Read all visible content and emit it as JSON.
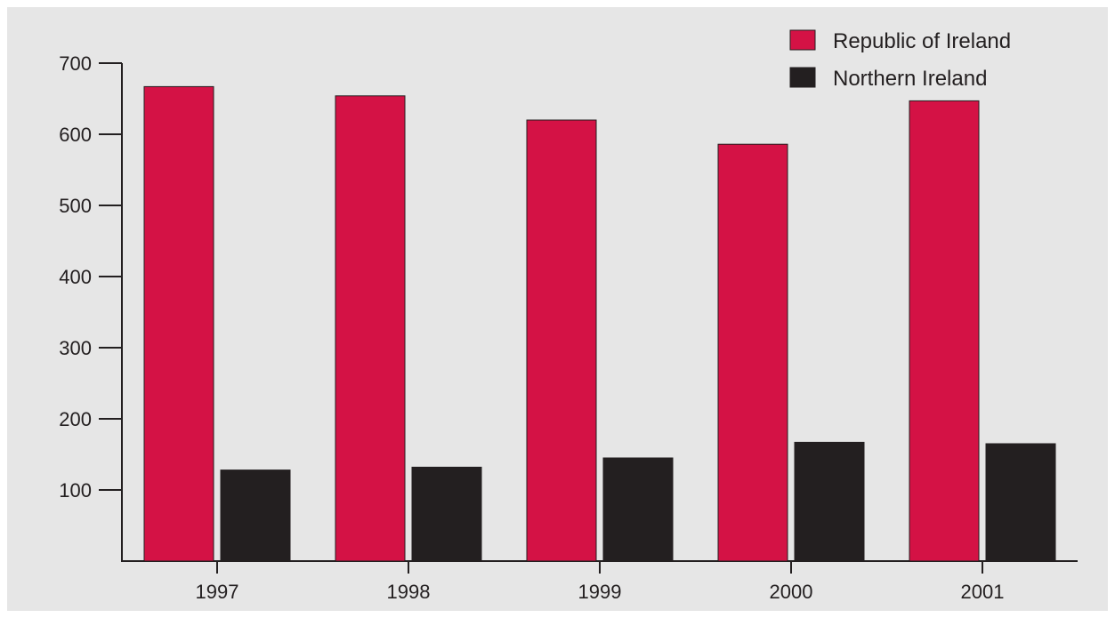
{
  "chart_data": {
    "type": "bar",
    "categories": [
      "1997",
      "1998",
      "1999",
      "2000",
      "2001"
    ],
    "series": [
      {
        "name": "Republic of Ireland",
        "color": "#d41245",
        "values": [
          667,
          654,
          620,
          586,
          647
        ]
      },
      {
        "name": "Northern Ireland",
        "color": "#231f20",
        "values": [
          128,
          132,
          145,
          167,
          165
        ]
      }
    ],
    "y_ticks": [
      "100",
      "200",
      "300",
      "400",
      "500",
      "600",
      "700"
    ],
    "ylim": [
      0,
      700
    ],
    "grid": false,
    "legend_position": "top-right",
    "background": "#e6e6e6"
  }
}
